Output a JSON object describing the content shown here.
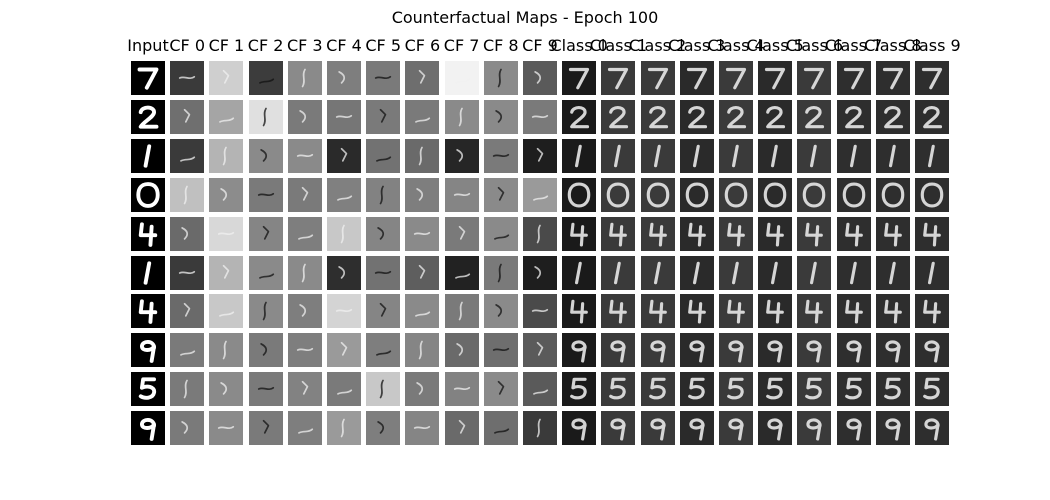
{
  "figure": {
    "title": "Counterfactual Maps - Epoch 100",
    "column_labels": [
      "Input",
      "CF 0",
      "CF 1",
      "CF 2",
      "CF 3",
      "CF 4",
      "CF 5",
      "CF 6",
      "CF 7",
      "CF 8",
      "CF 9",
      "Class 0",
      "Class 1",
      "Class 2",
      "Class 3",
      "Class 4",
      "Class 5",
      "Class 6",
      "Class 7",
      "Class 8",
      "Class 9"
    ],
    "rows": [
      {
        "digit": "7",
        "cf_backgrounds": [
          "#3a3a3a",
          "#cfcfcf",
          "#3c3c3c",
          "#8a8a8a",
          "#7e7e7e",
          "#7a7a7a",
          "#6e6e6e",
          "#f2f2f2",
          "#8a8a8a",
          "#5a5a5a"
        ]
      },
      {
        "digit": "2",
        "cf_backgrounds": [
          "#6f6f6f",
          "#a5a5a5",
          "#e0e0e0",
          "#7a7a7a",
          "#767676",
          "#7a7a7a",
          "#7a7a7a",
          "#8a8a8a",
          "#8a8a8a",
          "#7a7a7a"
        ]
      },
      {
        "digit": "1",
        "cf_backgrounds": [
          "#3a3a3a",
          "#b4b4b4",
          "#8a8a8a",
          "#8a8a8a",
          "#2a2a2a",
          "#727272",
          "#6a6a6a",
          "#262626",
          "#7a7a7a",
          "#1e1e1e"
        ]
      },
      {
        "digit": "0",
        "cf_backgrounds": [
          "#c0c0c0",
          "#8c8c8c",
          "#7a7a7a",
          "#7a7a7a",
          "#808080",
          "#828282",
          "#7e7e7e",
          "#858585",
          "#8a8a8a",
          "#9a9a9a"
        ]
      },
      {
        "digit": "4",
        "cf_backgrounds": [
          "#6a6a6a",
          "#d8d8d8",
          "#858585",
          "#7e7e7e",
          "#c8c8c8",
          "#858585",
          "#8a8a8a",
          "#7a7a7a",
          "#8a8a8a",
          "#4a4a4a"
        ]
      },
      {
        "digit": "1",
        "cf_backgrounds": [
          "#3a3a3a",
          "#b4b4b4",
          "#8a8a8a",
          "#8a8a8a",
          "#2e2e2e",
          "#727272",
          "#5e5e5e",
          "#222222",
          "#7a7a7a",
          "#1e1e1e"
        ]
      },
      {
        "digit": "4",
        "cf_backgrounds": [
          "#6a6a6a",
          "#c8c8c8",
          "#8a8a8a",
          "#7e7e7e",
          "#d4d4d4",
          "#858585",
          "#8a8a8a",
          "#7a7a7a",
          "#8a8a8a",
          "#4a4a4a"
        ]
      },
      {
        "digit": "9",
        "cf_backgrounds": [
          "#7a7a7a",
          "#8a8a8a",
          "#7a7a7a",
          "#7e7e7e",
          "#9a9a9a",
          "#7e7e7e",
          "#858585",
          "#6a6a6a",
          "#6e6e6e",
          "#5a5a5a"
        ]
      },
      {
        "digit": "5",
        "cf_backgrounds": [
          "#7a7a7a",
          "#8a8a8a",
          "#7a7a7a",
          "#828282",
          "#7a7a7a",
          "#c8c8c8",
          "#7a7a7a",
          "#828282",
          "#8a8a8a",
          "#5a5a5a"
        ]
      },
      {
        "digit": "9",
        "cf_backgrounds": [
          "#7a7a7a",
          "#8a8a8a",
          "#7a7a7a",
          "#7e7e7e",
          "#9a9a9a",
          "#7e7e7e",
          "#858585",
          "#6a6a6a",
          "#6e6e6e",
          "#3a3a3a"
        ]
      }
    ],
    "class_backgrounds": [
      "#1a1a1a",
      "#3a3a3a",
      "#3a3a3a",
      "#2a2a2a",
      "#3a3a3a",
      "#2a2a2a",
      "#3a3a3a",
      "#2e2e2e",
      "#2e2e2e",
      "#2e2e2e"
    ],
    "input_background": "#000000",
    "stroke_color": "#ffffff"
  }
}
